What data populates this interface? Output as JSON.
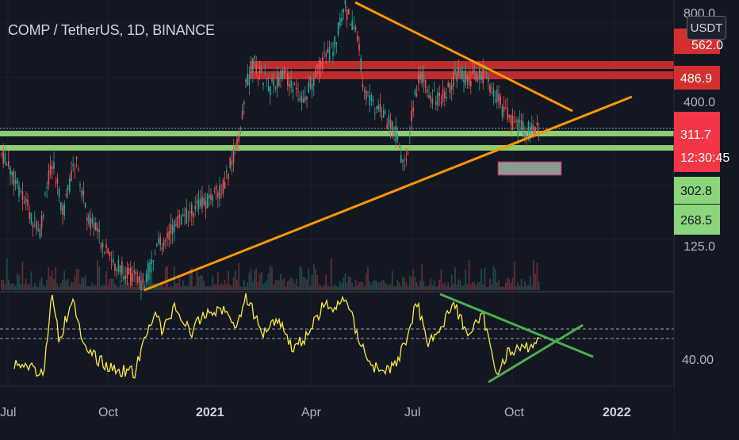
{
  "symbol_title": "COMP / TetherUS, 1D, BINANCE",
  "currency_button": "USDT",
  "colors": {
    "background": "#131722",
    "candle_up": "#26a69a",
    "candle_down": "#ef5350",
    "trendline": "#ff9800",
    "support_zone": "#9be07b",
    "resistance_zone": "#d32f2f",
    "rsi_line": "#ffeb3b",
    "rsi_trendline": "#4caf50"
  },
  "price_axis": {
    "ticks": [
      "800.0",
      "562.0",
      "400.0",
      "125.0"
    ],
    "badges": [
      {
        "label": "486.9",
        "color": "#d32f2f",
        "text_color": "#ffffff"
      },
      {
        "label": "311.7",
        "color": "#f23645",
        "text_color": "#ffffff"
      },
      {
        "label": "12:30:45",
        "color": "#f23645",
        "text_color": "#ffffff"
      },
      {
        "label": "302.8",
        "color": "#8bd67a",
        "text_color": "#131722"
      },
      {
        "label": "268.5",
        "color": "#8bd67a",
        "text_color": "#131722"
      }
    ]
  },
  "rsi_axis": {
    "ticks": [
      "40.00"
    ]
  },
  "time_axis": {
    "labels": [
      {
        "text": "Jul",
        "bold": false
      },
      {
        "text": "Oct",
        "bold": false
      },
      {
        "text": "2021",
        "bold": true
      },
      {
        "text": "Apr",
        "bold": false
      },
      {
        "text": "Jul",
        "bold": false
      },
      {
        "text": "Oct",
        "bold": false
      },
      {
        "text": "2022",
        "bold": true
      }
    ]
  }
}
